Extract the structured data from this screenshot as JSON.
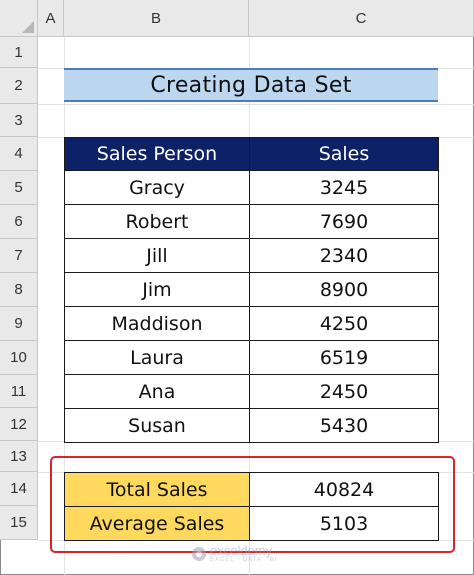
{
  "columns": [
    "A",
    "B",
    "C"
  ],
  "rows": [
    "1",
    "2",
    "3",
    "4",
    "5",
    "6",
    "7",
    "8",
    "9",
    "10",
    "11",
    "12",
    "13",
    "14",
    "15"
  ],
  "title": "Creating Data Set",
  "table": {
    "headers": [
      "Sales Person",
      "Sales"
    ],
    "rows": [
      {
        "name": "Gracy",
        "sales": "3245"
      },
      {
        "name": "Robert",
        "sales": "7690"
      },
      {
        "name": "Jill",
        "sales": "2340"
      },
      {
        "name": "Jim",
        "sales": "8900"
      },
      {
        "name": "Maddison",
        "sales": "4250"
      },
      {
        "name": "Laura",
        "sales": "6519"
      },
      {
        "name": "Ana",
        "sales": "2450"
      },
      {
        "name": "Susan",
        "sales": "5430"
      }
    ]
  },
  "summary": [
    {
      "label": "Total Sales",
      "value": "40824"
    },
    {
      "label": "Average Sales",
      "value": "5103"
    }
  ],
  "watermark": {
    "name": "exceldemy",
    "tagline": "EXCEL · DATA · BI"
  },
  "colors": {
    "header_fill": "#0d2166",
    "title_fill": "#bcd7ef",
    "summary_fill": "#ffd95e",
    "highlight_border": "#d9242b"
  }
}
